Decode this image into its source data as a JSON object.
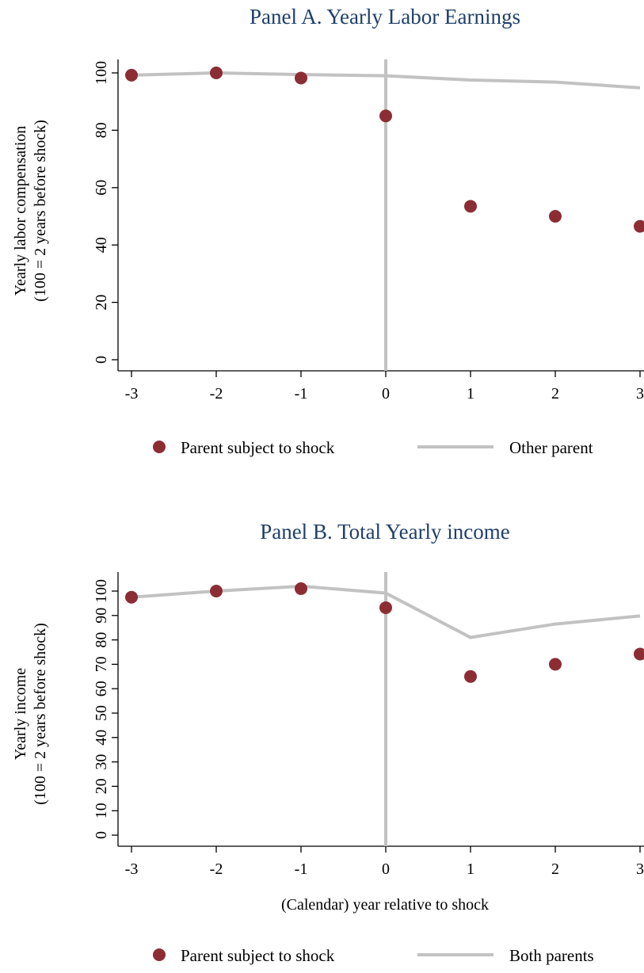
{
  "colors": {
    "dot": "#8c2d34",
    "line": "#c2c2c2",
    "title": "#1f3f6b"
  },
  "chart_data": [
    {
      "type": "scatter",
      "title": "Panel A. Yearly Labor Earnings",
      "ylabel_line1": "Yearly labor compensation",
      "ylabel_line2": "(100 = 2 years before shock)",
      "xlabel": "",
      "x": [
        -3,
        -2,
        -1,
        0,
        1,
        2,
        3
      ],
      "xlim": [
        -3,
        3
      ],
      "ylim": [
        0,
        105
      ],
      "yticks": [
        "0",
        "20",
        "40",
        "60",
        "80",
        "100"
      ],
      "ytick_values": [
        0,
        20,
        40,
        60,
        80,
        100
      ],
      "xticks": [
        "-3",
        "-2",
        "-1",
        "0",
        "1",
        "2",
        "3"
      ],
      "vline_x": 0,
      "grid": false,
      "series": [
        {
          "name": "Parent subject to shock",
          "kind": "dots",
          "values": [
            99.2,
            100,
            98.2,
            85,
            53.5,
            50,
            46.5
          ]
        },
        {
          "name": "Other parent",
          "kind": "line",
          "values": [
            99.2,
            100,
            99.4,
            99,
            97.5,
            96.8,
            94.8
          ]
        }
      ]
    },
    {
      "type": "scatter",
      "title": "Panel B. Total Yearly income",
      "ylabel_line1": "Yearly income",
      "ylabel_line2": "(100 = 2 years before shock)",
      "xlabel": "(Calendar) year relative to shock",
      "x": [
        -3,
        -2,
        -1,
        0,
        1,
        2,
        3
      ],
      "xlim": [
        -3,
        3
      ],
      "ylim": [
        0,
        103.5
      ],
      "yticks": [
        "0",
        "10",
        "20",
        "30",
        "40",
        "50",
        "60",
        "70",
        "80",
        "90",
        "100"
      ],
      "ytick_values": [
        0,
        10,
        20,
        30,
        40,
        50,
        60,
        70,
        80,
        90,
        100
      ],
      "xticks": [
        "-3",
        "-2",
        "-1",
        "0",
        "1",
        "2",
        "3"
      ],
      "vline_x": 0,
      "grid": false,
      "series": [
        {
          "name": "Parent subject to shock",
          "kind": "dots",
          "values": [
            97.5,
            100,
            101,
            93.2,
            65,
            70,
            74.2
          ]
        },
        {
          "name": "Both parents",
          "kind": "line",
          "values": [
            97.5,
            100,
            102,
            99.2,
            81,
            86.5,
            89.8
          ]
        }
      ]
    }
  ]
}
